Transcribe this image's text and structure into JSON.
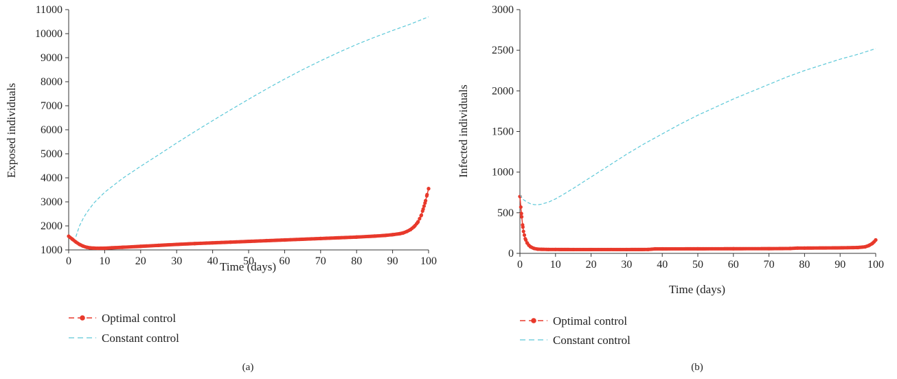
{
  "colors": {
    "optimal": "#e8392b",
    "constant": "#5bc8d8",
    "axis": "#333333"
  },
  "chart_data": [
    {
      "type": "line",
      "panel_label": "(a)",
      "xlabel": "Time (days)",
      "ylabel": "Exposed individuals",
      "xlim": [
        0,
        100
      ],
      "ylim": [
        1000,
        11000
      ],
      "xticks": [
        0,
        10,
        20,
        30,
        40,
        50,
        60,
        70,
        80,
        90,
        100
      ],
      "yticks": [
        1000,
        2000,
        3000,
        4000,
        5000,
        6000,
        7000,
        8000,
        9000,
        10000,
        11000
      ],
      "grid": false,
      "legend_position": "bottom",
      "series": [
        {
          "name": "Optimal control",
          "style": "dashed-markers",
          "x": [
            0,
            1,
            2,
            3,
            4,
            5,
            6,
            7,
            8,
            10,
            12,
            15,
            20,
            25,
            30,
            35,
            40,
            45,
            50,
            55,
            60,
            65,
            70,
            75,
            80,
            85,
            88,
            90,
            92,
            93,
            94,
            95,
            96,
            97,
            98,
            98.5,
            99,
            99.5,
            100
          ],
          "y": [
            1570,
            1450,
            1330,
            1230,
            1160,
            1110,
            1085,
            1075,
            1070,
            1072,
            1090,
            1110,
            1150,
            1190,
            1230,
            1265,
            1295,
            1325,
            1355,
            1385,
            1415,
            1445,
            1475,
            1505,
            1535,
            1575,
            1605,
            1635,
            1675,
            1710,
            1770,
            1850,
            1970,
            2150,
            2450,
            2700,
            2950,
            3250,
            3550
          ]
        },
        {
          "name": "Constant control",
          "style": "dashed",
          "x": [
            2,
            3,
            4,
            5,
            7,
            10,
            15,
            20,
            25,
            30,
            35,
            40,
            45,
            50,
            55,
            60,
            65,
            70,
            75,
            80,
            85,
            90,
            95,
            100
          ],
          "y": [
            1550,
            2000,
            2300,
            2550,
            2950,
            3400,
            3980,
            4480,
            4960,
            5450,
            5920,
            6380,
            6830,
            7270,
            7700,
            8110,
            8500,
            8870,
            9220,
            9550,
            9850,
            10130,
            10400,
            10700
          ]
        }
      ]
    },
    {
      "type": "line",
      "panel_label": "(b)",
      "xlabel": "Time (days)",
      "ylabel": "Infected individuals",
      "xlim": [
        0,
        100
      ],
      "ylim": [
        0,
        3000
      ],
      "xticks": [
        0,
        10,
        20,
        30,
        40,
        50,
        60,
        70,
        80,
        90,
        100
      ],
      "yticks": [
        0,
        500,
        1000,
        1500,
        2000,
        2500,
        3000
      ],
      "grid": false,
      "legend_position": "bottom",
      "series": [
        {
          "name": "Optimal control",
          "style": "dashed-markers",
          "x": [
            0,
            0.25,
            0.5,
            0.75,
            1,
            1.5,
            2,
            2.5,
            3,
            4,
            5,
            6,
            8,
            10,
            15,
            20,
            30,
            36,
            38,
            40,
            50,
            60,
            70,
            76,
            78,
            80,
            90,
            95,
            97,
            98,
            99,
            99.5,
            100
          ],
          "y": [
            700,
            570,
            450,
            350,
            270,
            180,
            130,
            100,
            80,
            60,
            52,
            50,
            48,
            48,
            47,
            47,
            47,
            48,
            55,
            55,
            56,
            57,
            58,
            60,
            65,
            65,
            68,
            72,
            80,
            95,
            120,
            140,
            165
          ]
        },
        {
          "name": "Constant control",
          "style": "dashed",
          "x": [
            0,
            1,
            2,
            3,
            4,
            5,
            6,
            8,
            10,
            12,
            15,
            20,
            25,
            30,
            35,
            40,
            45,
            50,
            55,
            60,
            65,
            70,
            75,
            80,
            85,
            90,
            95,
            100
          ],
          "y": [
            720,
            660,
            630,
            610,
            600,
            598,
            605,
            630,
            670,
            720,
            800,
            940,
            1080,
            1220,
            1350,
            1470,
            1590,
            1700,
            1800,
            1900,
            1990,
            2080,
            2170,
            2250,
            2320,
            2390,
            2450,
            2520
          ]
        }
      ]
    }
  ]
}
